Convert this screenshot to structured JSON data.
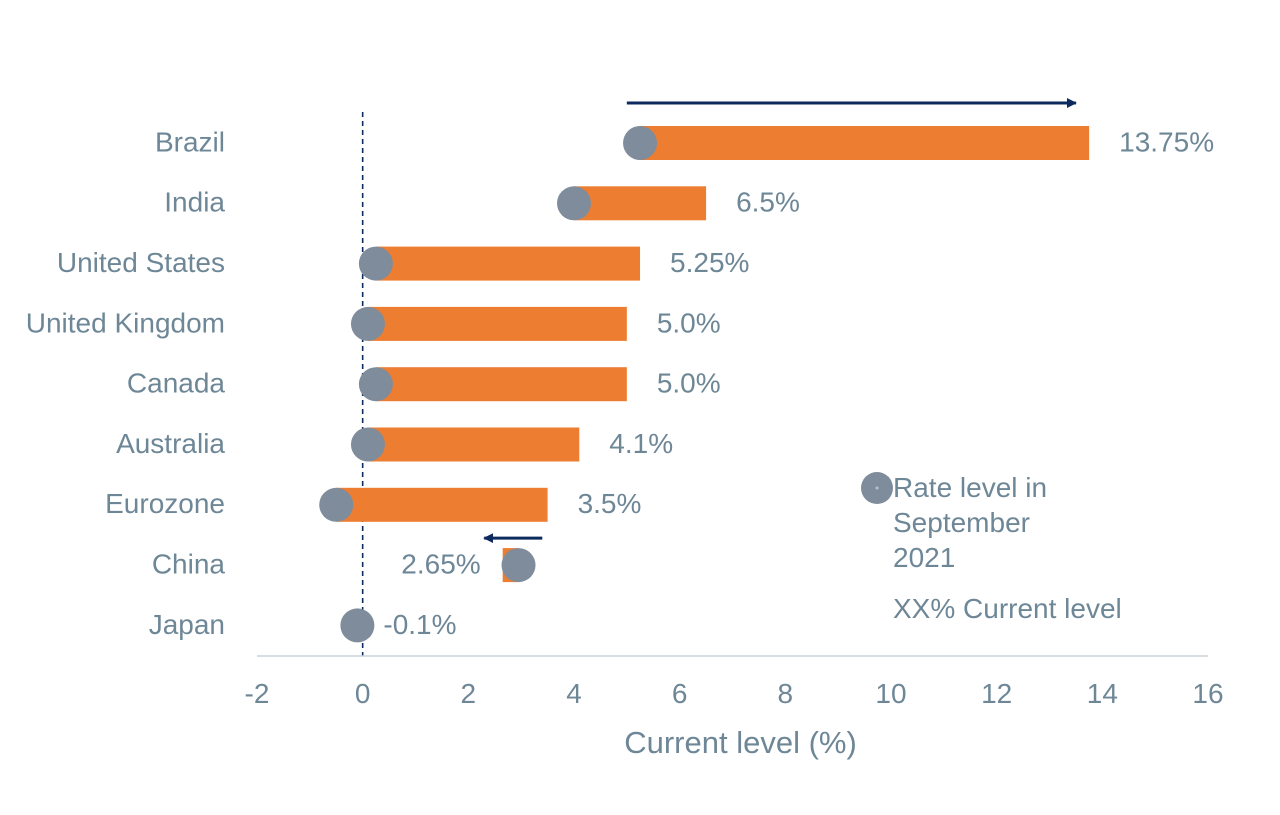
{
  "chart_data": {
    "type": "bar",
    "categories": [
      "Brazil",
      "India",
      "United States",
      "United Kingdom",
      "Canada",
      "Australia",
      "Eurozone",
      "China",
      "Japan"
    ],
    "series": [
      {
        "values": [
          5.25,
          4.0,
          0.25,
          0.1,
          0.25,
          0.1,
          -0.5,
          2.95,
          -0.1
        ]
      },
      {
        "values": [
          13.75,
          6.5,
          5.25,
          5.0,
          5.0,
          4.1,
          3.5,
          2.65,
          -0.1
        ]
      }
    ],
    "value_labels": [
      "13.75%",
      "6.5%",
      "5.25%",
      "5.0%",
      "5.0%",
      "4.1%",
      "3.5%",
      "2.65%",
      "-0.1%"
    ],
    "xlabel": "Current level (%)",
    "xlim": [
      -2,
      16
    ],
    "x_ticks": [
      "-2",
      "0",
      "2",
      "4",
      "6",
      "8",
      "10",
      "12",
      "14",
      "16"
    ],
    "legend": {
      "position": "lower-right",
      "marker_label_lines": [
        "Rate level in",
        "September",
        "2021"
      ],
      "value_label": "XX% Current level"
    },
    "zero_reference_line": "dashed",
    "arrows": [
      {
        "category": "Brazil",
        "from": 5.0,
        "to": 13.5,
        "direction": "right"
      },
      {
        "category": "China",
        "from": 3.4,
        "to": 2.3,
        "direction": "left"
      }
    ],
    "colors": {
      "bar": "#ED7D31",
      "marker": "#7F8C9B",
      "text": "#6E8797",
      "arrow": "#0D2A5E",
      "axis": "#C8D3DA"
    }
  }
}
